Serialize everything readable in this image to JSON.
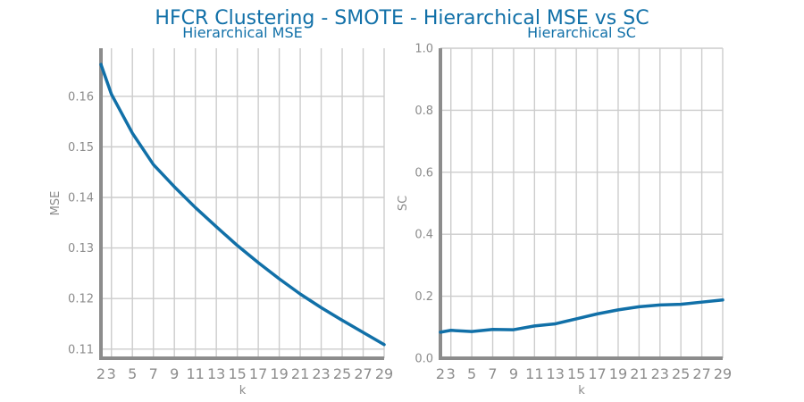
{
  "figure": {
    "title": "HFCR Clustering - SMOTE - Hierarchical MSE vs SC",
    "line_color": "#1170a8",
    "title_color": "#1170a8",
    "tick_color": "#8c8c8c",
    "grid_color": "#cccccc"
  },
  "chart_data": [
    {
      "type": "line",
      "title": "Hierarchical MSE",
      "xlabel": "k",
      "ylabel": "MSE",
      "x": [
        2,
        3,
        5,
        7,
        9,
        11,
        13,
        15,
        17,
        19,
        21,
        23,
        25,
        27,
        29
      ],
      "xticks": [
        2,
        3,
        5,
        7,
        9,
        11,
        13,
        15,
        17,
        19,
        21,
        23,
        25,
        27,
        29
      ],
      "xlim": [
        2,
        29
      ],
      "ylim": [
        0.1082,
        0.1695
      ],
      "yticks": [
        0.11,
        0.12,
        0.13,
        0.14,
        0.15,
        0.16
      ],
      "ytick_labels": [
        "0.11",
        "0.12",
        "0.13",
        "0.14",
        "0.15",
        "0.16"
      ],
      "grid": true,
      "series": [
        {
          "values": [
            0.1663,
            0.1604,
            0.1527,
            0.1465,
            0.1421,
            0.138,
            0.1342,
            0.1305,
            0.1271,
            0.1239,
            0.1209,
            0.1182,
            0.1157,
            0.1133,
            0.1109
          ]
        }
      ]
    },
    {
      "type": "line",
      "title": "Hierarchical SC",
      "xlabel": "k",
      "ylabel": "SC",
      "x": [
        2,
        3,
        5,
        7,
        9,
        11,
        13,
        15,
        17,
        19,
        21,
        23,
        25,
        27,
        29
      ],
      "xticks": [
        2,
        3,
        5,
        7,
        9,
        11,
        13,
        15,
        17,
        19,
        21,
        23,
        25,
        27,
        29
      ],
      "xlim": [
        2,
        29
      ],
      "ylim": [
        0.0,
        1.0
      ],
      "yticks": [
        0.0,
        0.2,
        0.4,
        0.6,
        0.8,
        1.0
      ],
      "ytick_labels": [
        "0.0",
        "0.2",
        "0.4",
        "0.6",
        "0.8",
        "1.0"
      ],
      "grid": true,
      "series": [
        {
          "values": [
            0.084,
            0.09,
            0.086,
            0.093,
            0.092,
            0.104,
            0.111,
            0.127,
            0.143,
            0.156,
            0.166,
            0.172,
            0.174,
            0.181,
            0.188
          ]
        }
      ]
    }
  ]
}
